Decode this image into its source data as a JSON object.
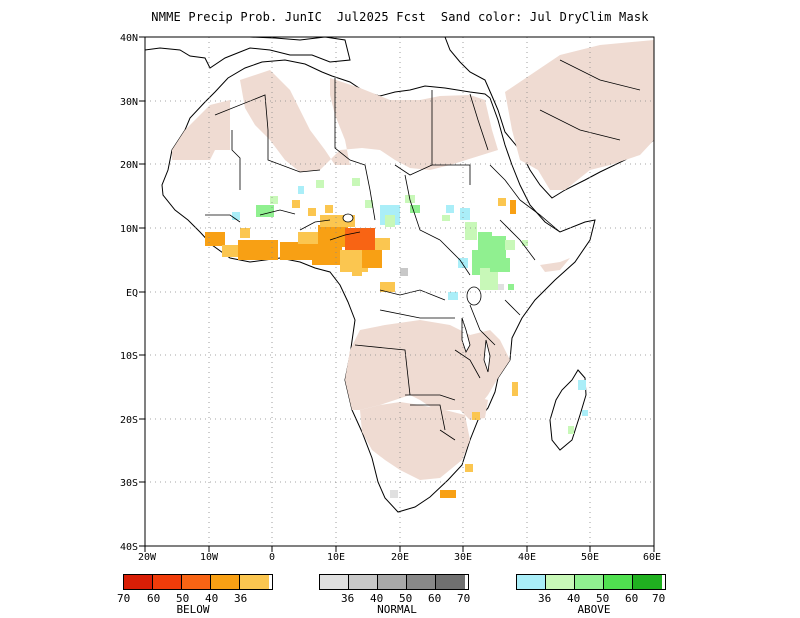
{
  "title": "NMME Precip Prob. JunIC  Jul2025 Fcst  Sand color: Jul DryClim Mask",
  "map": {
    "lon_range": [
      -20,
      60
    ],
    "lat_range": [
      -40,
      40
    ],
    "lon_ticks": [
      "20W",
      "10W",
      "0",
      "10E",
      "20E",
      "30E",
      "40E",
      "50E",
      "60E"
    ],
    "lat_ticks": [
      "40N",
      "30N",
      "20N",
      "10N",
      "EQ",
      "10S",
      "20S",
      "30S",
      "40S"
    ],
    "grid": true,
    "mask_color": "#efdbd2",
    "mask_label": "Sand color: Jul DryClim Mask"
  },
  "legend": {
    "below": {
      "label": "BELOW",
      "colors": [
        "#d81e06",
        "#f03c0a",
        "#f86414",
        "#f8a014",
        "#fbc650"
      ],
      "values": [
        "70",
        "60",
        "50",
        "40",
        "36"
      ]
    },
    "normal": {
      "label": "NORMAL",
      "colors": [
        "#e0e0e0",
        "#c8c8c8",
        "#a8a8a8",
        "#888888",
        "#707070"
      ],
      "values": [
        "36",
        "40",
        "50",
        "60",
        "70"
      ]
    },
    "above": {
      "label": "ABOVE",
      "colors": [
        "#aaeef8",
        "#c8f8b8",
        "#90f090",
        "#50e050",
        "#20b020"
      ],
      "values": [
        "36",
        "40",
        "50",
        "60",
        "70"
      ]
    }
  }
}
